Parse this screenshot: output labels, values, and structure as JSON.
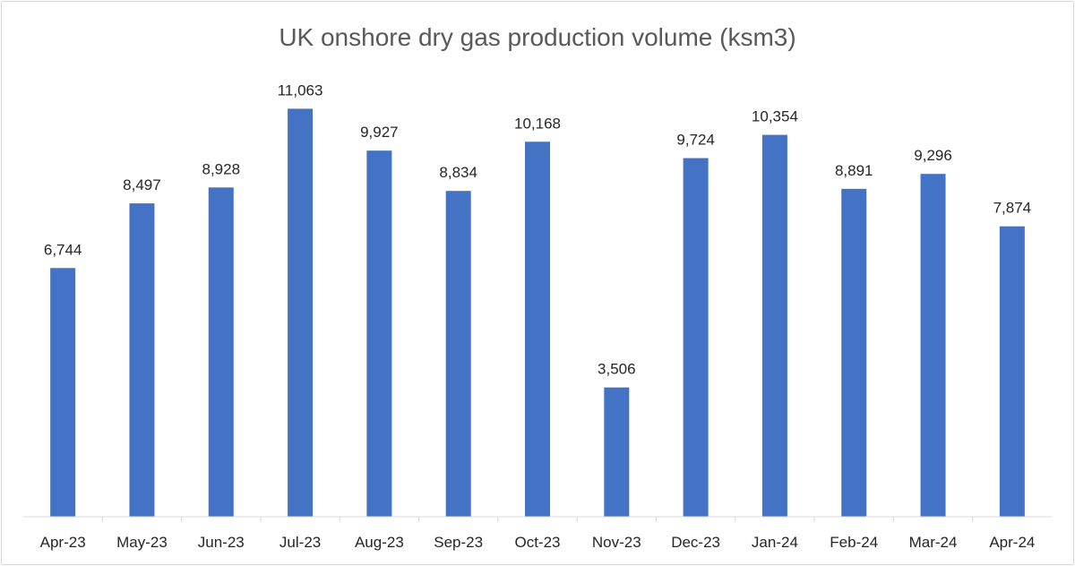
{
  "chart_data": {
    "type": "bar",
    "title": "UK onshore dry gas production volume (ksm3)",
    "categories": [
      "Apr-23",
      "May-23",
      "Jun-23",
      "Jul-23",
      "Aug-23",
      "Sep-23",
      "Oct-23",
      "Nov-23",
      "Dec-23",
      "Jan-24",
      "Feb-24",
      "Mar-24",
      "Apr-24"
    ],
    "values": [
      6744,
      8497,
      8928,
      11063,
      9927,
      8834,
      10168,
      3506,
      9724,
      10354,
      8891,
      9296,
      7874
    ],
    "data_labels": [
      "6,744",
      "8,497",
      "8,928",
      "11,063",
      "9,927",
      "8,834",
      "10,168",
      "3,506",
      "9,724",
      "10,354",
      "8,891",
      "9,296",
      "7,874"
    ],
    "xlabel": "",
    "ylabel": "",
    "ylim": [
      0,
      11000
    ],
    "y_axis_visible": false,
    "grid": false,
    "legend": "none",
    "bar_color": "#4472C4",
    "axis_color": "#d9d9d9"
  }
}
